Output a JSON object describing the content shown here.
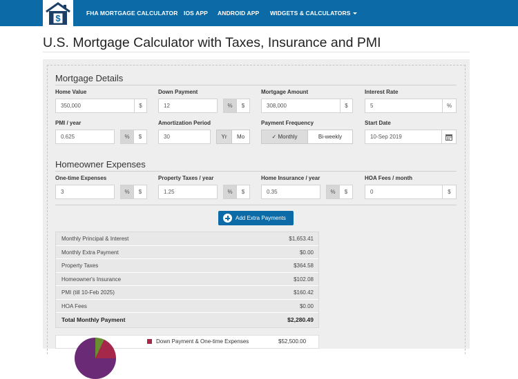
{
  "nav": {
    "links": [
      "FHA MORTGAGE CALCULATOR",
      "IOS APP",
      "ANDROID APP",
      "WIDGETS & CALCULATORS"
    ]
  },
  "page": {
    "title": "U.S. Mortgage Calculator with Taxes, Insurance and PMI"
  },
  "mortgage": {
    "section_title": "Mortgage Details",
    "home_value": {
      "label": "Home Value",
      "value": "350,000",
      "unit": "$"
    },
    "down_payment": {
      "label": "Down Payment",
      "value": "12",
      "unit_pct": "%",
      "unit_dollar": "$"
    },
    "mortgage_amount": {
      "label": "Mortgage Amount",
      "value": "308,000",
      "unit": "$"
    },
    "interest_rate": {
      "label": "Interest Rate",
      "value": "5",
      "unit": "%"
    },
    "pmi": {
      "label": "PMI / year",
      "value": "0.625",
      "unit_pct": "%",
      "unit_dollar": "$"
    },
    "amortization": {
      "label": "Amortization Period",
      "value": "30",
      "unit_yr": "Yr",
      "unit_mo": "Mo"
    },
    "payment_frequency": {
      "label": "Payment Frequency",
      "monthly": "Monthly",
      "biweekly": "Bi-weekly",
      "selected": "Monthly"
    },
    "start_date": {
      "label": "Start Date",
      "value": "10-Sep 2019"
    }
  },
  "expenses": {
    "section_title": "Homeowner Expenses",
    "one_time": {
      "label": "One-time Expenses",
      "value": "3",
      "unit_pct": "%",
      "unit_dollar": "$"
    },
    "property_taxes": {
      "label": "Property Taxes / year",
      "value": "1.25",
      "unit_pct": "%",
      "unit_dollar": "$"
    },
    "home_insurance": {
      "label": "Home Insurance / year",
      "value": "0.35",
      "unit_pct": "%",
      "unit_dollar": "$"
    },
    "hoa_fees": {
      "label": "HOA Fees / month",
      "value": "0",
      "unit": "$"
    }
  },
  "add_extra_label": "Add Extra Payments",
  "summary": {
    "rows": [
      {
        "label": "Monthly Principal & Interest",
        "value": "$1,653.41"
      },
      {
        "label": "Monthly Extra Payment",
        "value": "$0.00"
      },
      {
        "label": "Property Taxes",
        "value": "$364.58"
      },
      {
        "label": "Homeowner's Insurance",
        "value": "$102.08"
      },
      {
        "label": "PMI (till 10-Feb 2025)",
        "value": "$160.42"
      },
      {
        "label": "HOA Fees",
        "value": "$0.00"
      }
    ],
    "total": {
      "label": "Total Monthly Payment",
      "value": "$2,280.49"
    }
  },
  "legend": {
    "label": "Down Payment & One-time Expenses",
    "value": "$52,500.00",
    "color": "#a5274a"
  },
  "colors": {
    "brand": "#0c6aa6",
    "panel": "#eeeeee"
  },
  "icons": {
    "logo": "house-calculator-icon",
    "calendar": "calendar-icon",
    "add": "plus-circle-icon"
  }
}
